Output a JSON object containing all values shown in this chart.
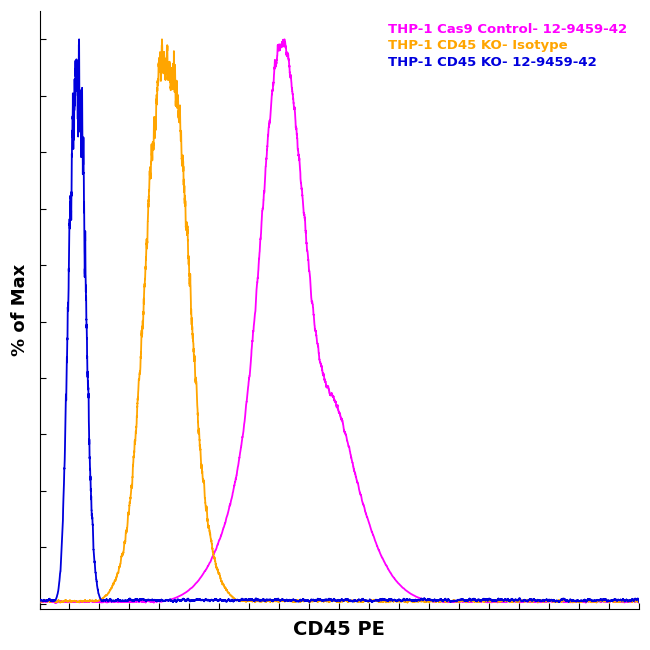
{
  "xlabel": "CD45 PE",
  "ylabel": "% of Max",
  "legend_entries": [
    {
      "label": "THP-1 Cas9 Control- 12-9459-42",
      "color": "#FF00FF"
    },
    {
      "label": "THP-1 CD45 KO- Isotype",
      "color": "#FFA500"
    },
    {
      "label": "THP-1 CD45 KO- 12-9459-42",
      "color": "#0000DD"
    }
  ],
  "background_color": "#FFFFFF",
  "xlim": [
    0,
    1000
  ],
  "ylim": [
    -0.01,
    1.05
  ],
  "colors": {
    "magenta": "#FF00FF",
    "orange": "#FFA500",
    "blue": "#0000DD"
  }
}
